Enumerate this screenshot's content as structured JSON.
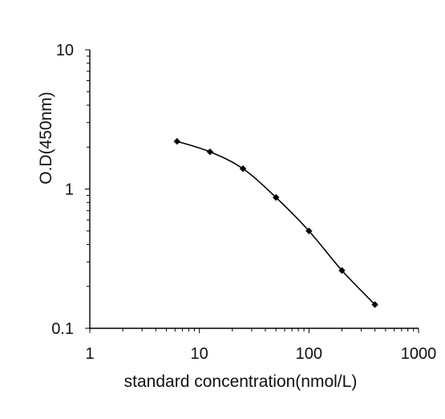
{
  "chart_data": {
    "type": "line",
    "title": "",
    "xlabel": "standard concentration(nmol/L)",
    "ylabel": "O.D(450nm)",
    "x_scale": "log",
    "y_scale": "log",
    "xlim": [
      1,
      1000
    ],
    "ylim": [
      0.1,
      10
    ],
    "x_tick_labels": [
      "1",
      "10",
      "100",
      "1000"
    ],
    "y_tick_labels": [
      "0.1",
      "1",
      "10"
    ],
    "grid": false,
    "legend": "none",
    "series": [
      {
        "color": "#000000",
        "marker": "diamond",
        "x": [
          6.25,
          12.5,
          25,
          50,
          100,
          200,
          400
        ],
        "y": [
          2.2,
          1.85,
          1.4,
          0.87,
          0.5,
          0.26,
          0.148
        ]
      }
    ]
  }
}
